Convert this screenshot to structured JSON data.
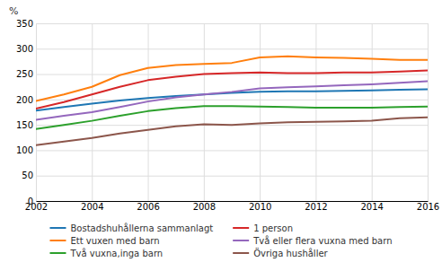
{
  "chart_data": {
    "type": "line",
    "ylabel": "%",
    "x": [
      2002,
      2003,
      2004,
      2005,
      2006,
      2007,
      2008,
      2009,
      2010,
      2011,
      2012,
      2013,
      2014,
      2015,
      2016
    ],
    "series": [
      {
        "name": "Bostadshuhållerna sammanlagt",
        "values": [
          178,
          185,
          192,
          198,
          203,
          207,
          210,
          213,
          215,
          216,
          216,
          217,
          218,
          219,
          220
        ]
      },
      {
        "name": "Ett vuxen med barn",
        "values": [
          197,
          210,
          225,
          248,
          262,
          268,
          270,
          272,
          283,
          285,
          283,
          282,
          280,
          278,
          278
        ]
      },
      {
        "name": "Två vuxna,inga barn",
        "values": [
          142,
          150,
          158,
          168,
          177,
          183,
          187,
          187,
          186,
          185,
          184,
          184,
          184,
          185,
          186
        ]
      },
      {
        "name": "1 person",
        "values": [
          182,
          195,
          210,
          225,
          238,
          245,
          250,
          252,
          253,
          252,
          252,
          253,
          253,
          255,
          257
        ]
      },
      {
        "name": "Två eller flera vuxna med barn",
        "values": [
          160,
          168,
          175,
          185,
          196,
          204,
          210,
          215,
          222,
          224,
          226,
          228,
          230,
          233,
          236
        ]
      },
      {
        "name": "Övriga hushåller",
        "values": [
          110,
          117,
          124,
          133,
          140,
          147,
          151,
          150,
          153,
          155,
          156,
          157,
          158,
          163,
          165
        ]
      }
    ],
    "xlim": [
      2002,
      2016
    ],
    "xticks": [
      2002,
      2004,
      2006,
      2008,
      2010,
      2012,
      2014,
      2016
    ],
    "ylim": [
      0,
      350
    ],
    "yticks": [
      0,
      50,
      100,
      150,
      200,
      250,
      300,
      350
    ],
    "grid": true,
    "legend": "bottom"
  }
}
